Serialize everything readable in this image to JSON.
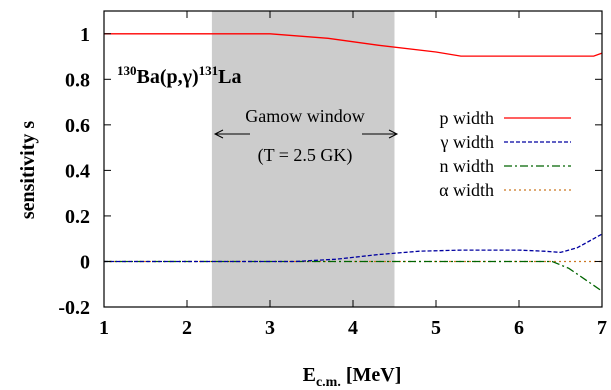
{
  "chart_data": {
    "type": "line",
    "xlabel_main": "E",
    "xlabel_sub": "c.m.",
    "xlabel_unit": " [MeV]",
    "ylabel": "sensitivity s",
    "xlim": [
      1,
      7
    ],
    "ylim": [
      -0.2,
      1.1
    ],
    "x_ticks": [
      1,
      2,
      3,
      4,
      5,
      6,
      7
    ],
    "y_ticks": [
      {
        "v": 1,
        "label": "1"
      },
      {
        "v": 0.8,
        "label": "0.8"
      },
      {
        "v": 0.6,
        "label": "0.6"
      },
      {
        "v": 0.4,
        "label": "0.4"
      },
      {
        "v": 0.2,
        "label": "0.2"
      },
      {
        "v": 0,
        "label": "0"
      },
      {
        "v": -0.2,
        "label": "-0.2"
      }
    ],
    "grid": false,
    "legend_placement": "right",
    "reaction": {
      "target_mass": "130",
      "target": "Ba(p,",
      "gamma": "γ",
      "close": ")",
      "product_mass": "131",
      "product": "La"
    },
    "gamow_window": {
      "x_range": [
        2.3,
        4.5
      ],
      "label": "Gamow window",
      "condition": "(T = 2.5 GK)",
      "color": "#cccccc"
    },
    "series": [
      {
        "name": "p width",
        "color": "#ff0000",
        "dash": "",
        "points": [
          [
            1,
            1.0
          ],
          [
            3.0,
            1.0
          ],
          [
            3.7,
            0.98
          ],
          [
            4.3,
            0.95
          ],
          [
            5.0,
            0.92
          ],
          [
            5.3,
            0.902
          ],
          [
            6.9,
            0.902
          ],
          [
            7,
            0.915
          ]
        ]
      },
      {
        "name": "γ width",
        "color": "#0000a0",
        "dash": "4,2",
        "points": [
          [
            1,
            0.0
          ],
          [
            3.3,
            0.0
          ],
          [
            3.8,
            0.01
          ],
          [
            4.3,
            0.03
          ],
          [
            4.8,
            0.045
          ],
          [
            5.3,
            0.05
          ],
          [
            6.0,
            0.05
          ],
          [
            6.3,
            0.045
          ],
          [
            6.5,
            0.04
          ],
          [
            6.7,
            0.06
          ],
          [
            6.85,
            0.09
          ],
          [
            7,
            0.12
          ]
        ]
      },
      {
        "name": "n width",
        "color": "#006400",
        "dash": "8,3,2,3",
        "points": [
          [
            1,
            0.0
          ],
          [
            6.4,
            0.0
          ],
          [
            6.6,
            -0.03
          ],
          [
            6.8,
            -0.08
          ],
          [
            7,
            -0.13
          ]
        ]
      },
      {
        "name": "α width",
        "color": "#cc7722",
        "dash": "2,3",
        "points": [
          [
            1,
            0.0
          ],
          [
            7,
            0.0
          ]
        ]
      }
    ]
  }
}
